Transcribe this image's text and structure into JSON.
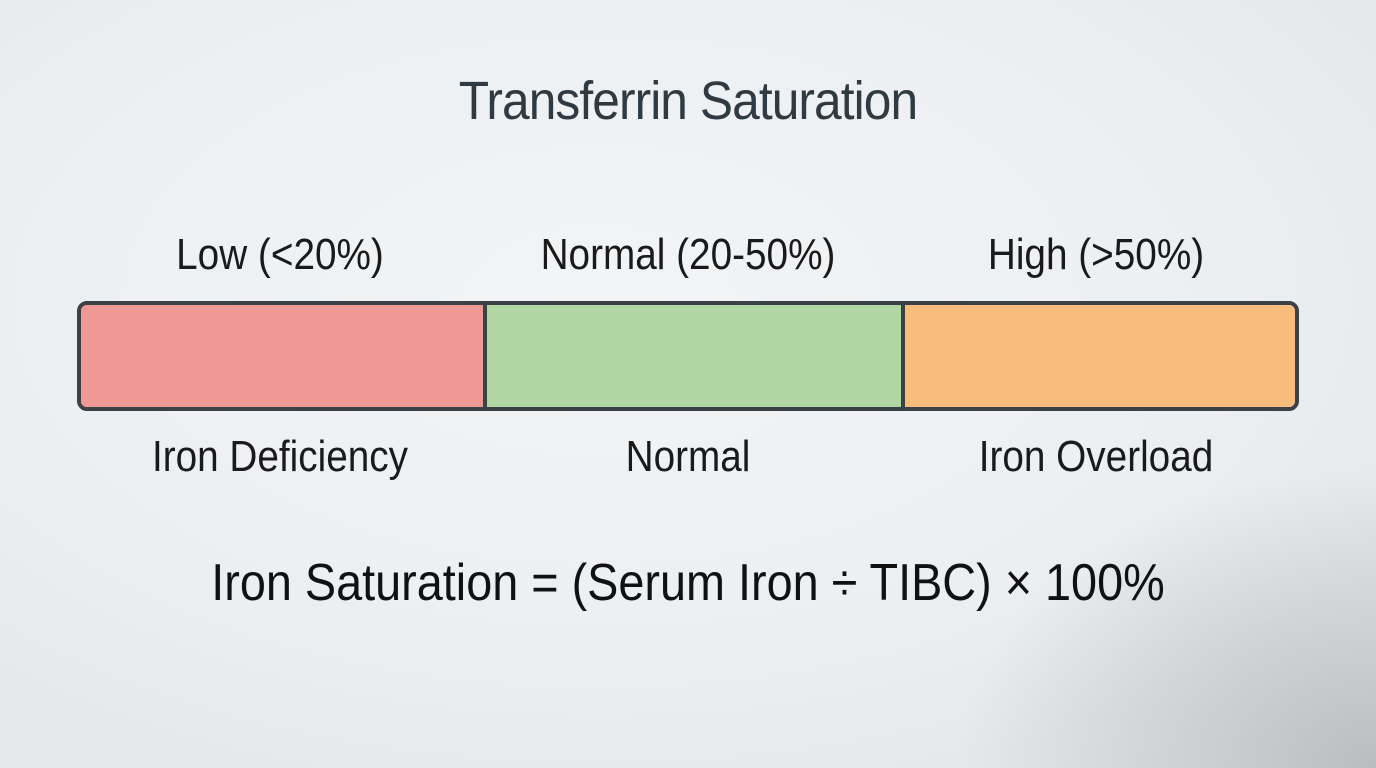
{
  "title": "Transferrin Saturation",
  "ranges": [
    {
      "range_label": "Low (<20%)",
      "zone_label": "Iron Deficiency",
      "color": "#ef9894"
    },
    {
      "range_label": "Normal (20-50%)",
      "zone_label": "Normal",
      "color": "#b2d6a2"
    },
    {
      "range_label": "High (>50%)",
      "zone_label": "Iron Overload",
      "color": "#f8bd7c"
    }
  ],
  "formula": "Iron Saturation = (Serum Iron ÷ TIBC) × 100%"
}
